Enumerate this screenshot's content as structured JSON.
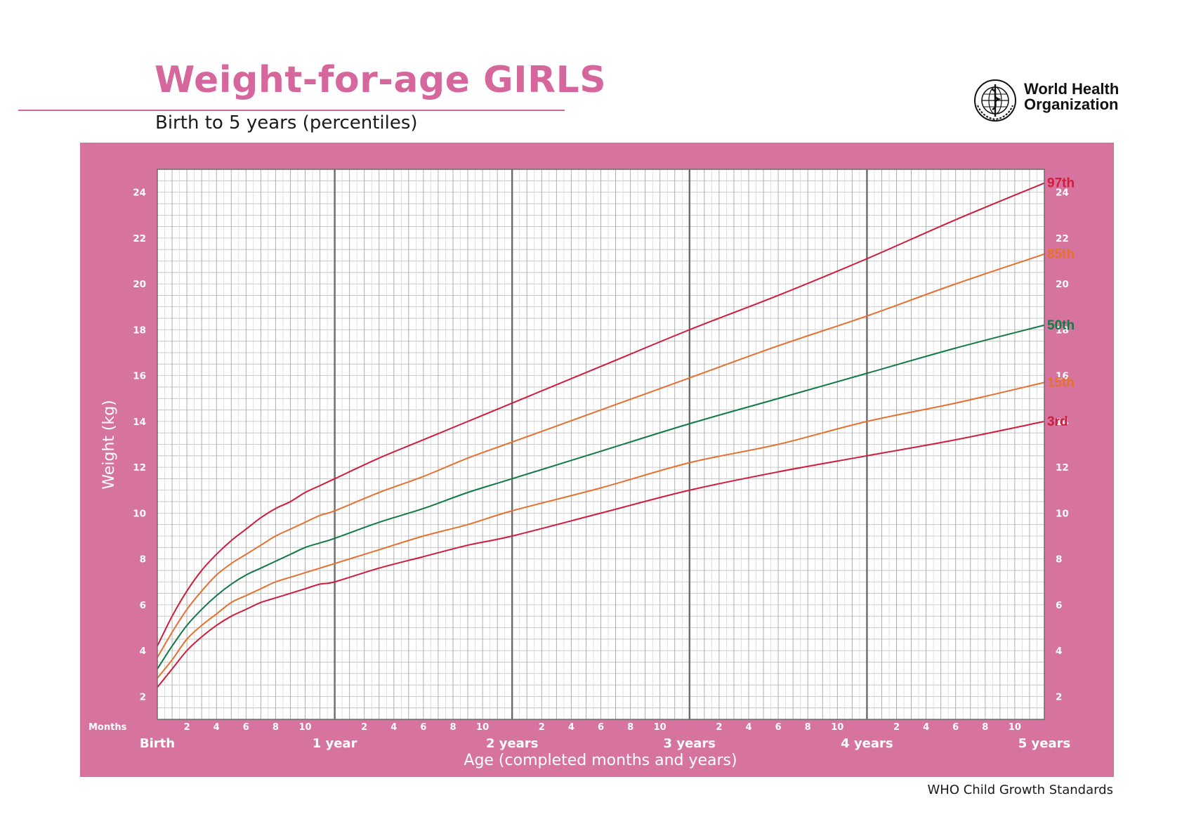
{
  "header": {
    "title": "Weight-for-age GIRLS",
    "subtitle": "Birth to 5 years (percentiles)"
  },
  "logo": {
    "line1": "World Health",
    "line2": "Organization",
    "icon": "who-emblem-icon"
  },
  "footer": {
    "text": "WHO Child Growth Standards"
  },
  "colors": {
    "brand_pink": "#d5679c",
    "chart_frame": "#d6749f",
    "p3": "#d01c3c",
    "p15": "#e5702f",
    "p50": "#117a44",
    "p85": "#e5702f",
    "p97": "#d01c3c"
  },
  "chart_data": {
    "type": "line",
    "title": "Weight-for-age GIRLS",
    "subtitle": "Birth to 5 years (percentiles)",
    "xlabel": "Age (completed months and years)",
    "ylabel": "Weight (kg)",
    "x_unit": "months",
    "xlim": [
      0,
      60
    ],
    "ylim": [
      1,
      25
    ],
    "y_ticks": [
      2,
      4,
      6,
      8,
      10,
      12,
      14,
      16,
      18,
      20,
      22,
      24
    ],
    "months_label": "Months",
    "month_ticks": [
      "2",
      "4",
      "6",
      "8",
      "10"
    ],
    "year_labels": [
      "Birth",
      "1 year",
      "2 years",
      "3 years",
      "4 years",
      "5 years"
    ],
    "grid": true,
    "x": [
      0,
      1,
      2,
      3,
      4,
      5,
      6,
      7,
      8,
      9,
      10,
      11,
      12,
      15,
      18,
      21,
      24,
      30,
      36,
      42,
      48,
      54,
      60
    ],
    "series": [
      {
        "name": "3rd",
        "color": "#d01c3c",
        "values": [
          2.4,
          3.2,
          4.0,
          4.6,
          5.1,
          5.5,
          5.8,
          6.1,
          6.3,
          6.5,
          6.7,
          6.9,
          7.0,
          7.6,
          8.1,
          8.6,
          9.0,
          10.0,
          11.0,
          11.8,
          12.5,
          13.2,
          14.0
        ]
      },
      {
        "name": "15th",
        "color": "#e5702f",
        "values": [
          2.8,
          3.6,
          4.5,
          5.1,
          5.6,
          6.1,
          6.4,
          6.7,
          7.0,
          7.2,
          7.4,
          7.6,
          7.8,
          8.4,
          9.0,
          9.5,
          10.1,
          11.1,
          12.2,
          13.0,
          14.0,
          14.8,
          15.7
        ]
      },
      {
        "name": "50th",
        "color": "#117a44",
        "values": [
          3.2,
          4.2,
          5.1,
          5.8,
          6.4,
          6.9,
          7.3,
          7.6,
          7.9,
          8.2,
          8.5,
          8.7,
          8.9,
          9.6,
          10.2,
          10.9,
          11.5,
          12.7,
          13.9,
          15.0,
          16.1,
          17.2,
          18.2
        ]
      },
      {
        "name": "85th",
        "color": "#e5702f",
        "values": [
          3.7,
          4.8,
          5.8,
          6.6,
          7.3,
          7.8,
          8.2,
          8.6,
          9.0,
          9.3,
          9.6,
          9.9,
          10.1,
          10.9,
          11.6,
          12.4,
          13.1,
          14.5,
          15.9,
          17.3,
          18.6,
          20.0,
          21.3
        ]
      },
      {
        "name": "97th",
        "color": "#d01c3c",
        "values": [
          4.2,
          5.5,
          6.6,
          7.5,
          8.2,
          8.8,
          9.3,
          9.8,
          10.2,
          10.5,
          10.9,
          11.2,
          11.5,
          12.4,
          13.2,
          14.0,
          14.8,
          16.4,
          18.0,
          19.5,
          21.1,
          22.8,
          24.4
        ]
      }
    ]
  }
}
